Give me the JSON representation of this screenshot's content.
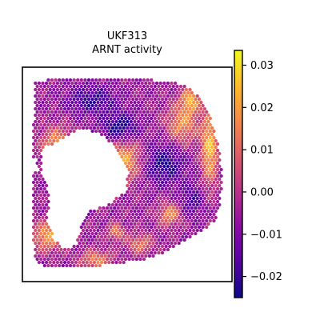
{
  "chart_data": {
    "type": "heatmap",
    "title_line1": "UKF313",
    "title_line2": "ARNT activity",
    "colormap": "plasma",
    "colorbar": {
      "vmin": -0.025,
      "vmax": 0.0335,
      "ticks": [
        0.03,
        0.02,
        0.01,
        0.0,
        -0.01,
        -0.02
      ],
      "tick_labels": [
        "0.03",
        "0.02",
        "0.01",
        "0.00",
        "−0.01",
        "−0.02"
      ]
    },
    "grid": false,
    "axes_ticks_visible": false
  }
}
